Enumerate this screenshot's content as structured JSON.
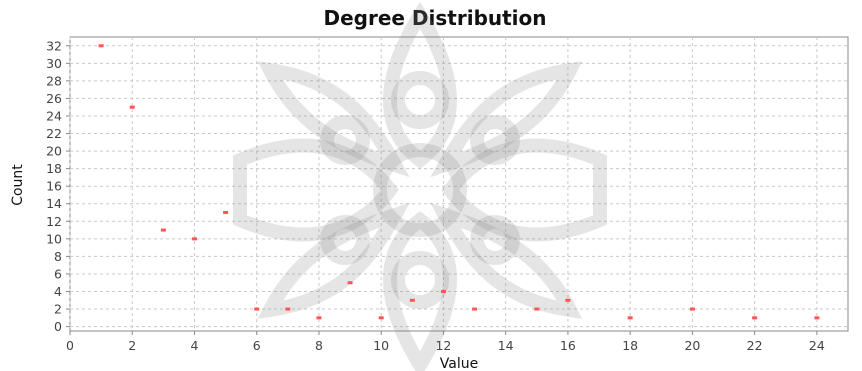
{
  "chart_data": {
    "type": "scatter",
    "title": "Degree Distribution",
    "xlabel": "Value",
    "ylabel": "Count",
    "xlim": [
      0,
      25
    ],
    "ylim": [
      -0.5,
      33
    ],
    "x_ticks": [
      0,
      2,
      4,
      6,
      8,
      10,
      12,
      14,
      16,
      18,
      20,
      22,
      24
    ],
    "y_ticks": [
      0,
      2,
      4,
      6,
      8,
      10,
      12,
      14,
      16,
      18,
      20,
      22,
      24,
      26,
      28,
      30,
      32
    ],
    "grid": true,
    "point_color": "#ff5555",
    "points": [
      {
        "x": 1,
        "y": 32
      },
      {
        "x": 2,
        "y": 25
      },
      {
        "x": 3,
        "y": 11
      },
      {
        "x": 4,
        "y": 10
      },
      {
        "x": 5,
        "y": 13
      },
      {
        "x": 6,
        "y": 2
      },
      {
        "x": 7,
        "y": 2
      },
      {
        "x": 8,
        "y": 1
      },
      {
        "x": 9,
        "y": 5
      },
      {
        "x": 10,
        "y": 1
      },
      {
        "x": 11,
        "y": 3
      },
      {
        "x": 12,
        "y": 4
      },
      {
        "x": 13,
        "y": 2
      },
      {
        "x": 15,
        "y": 2
      },
      {
        "x": 16,
        "y": 3
      },
      {
        "x": 18,
        "y": 1
      },
      {
        "x": 20,
        "y": 2
      },
      {
        "x": 22,
        "y": 1
      },
      {
        "x": 24,
        "y": 1
      }
    ]
  }
}
